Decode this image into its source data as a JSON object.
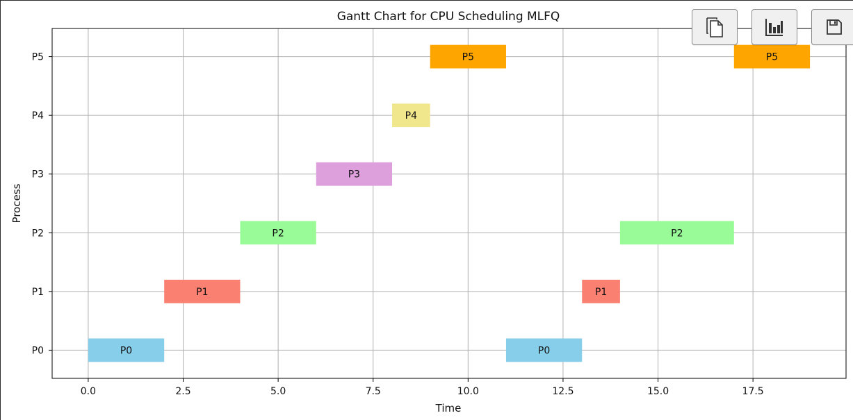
{
  "toolbar": {
    "buttons": [
      {
        "name": "copy-button",
        "icon": "copy-icon"
      },
      {
        "name": "chart-button",
        "icon": "bar-chart-icon"
      },
      {
        "name": "save-button",
        "icon": "save-icon"
      }
    ]
  },
  "chart_data": {
    "type": "gantt",
    "title": "Gantt Chart for CPU Scheduling MLFQ",
    "xlabel": "Time",
    "ylabel": "Process",
    "xlim": [
      -0.95,
      19.95
    ],
    "ylim": [
      -0.48,
      5.48
    ],
    "xticks": [
      0,
      2.5,
      5,
      7.5,
      10,
      12.5,
      15,
      17.5
    ],
    "xtick_labels": [
      "0.0",
      "2.5",
      "5.0",
      "7.5",
      "10.0",
      "12.5",
      "15.0",
      "17.5"
    ],
    "categories": [
      "P0",
      "P1",
      "P2",
      "P3",
      "P4",
      "P5"
    ],
    "grid": true,
    "bar_height": 0.4,
    "segments": [
      {
        "process": "P0",
        "start": 0,
        "end": 2,
        "color": "#87ceeb",
        "label": "P0"
      },
      {
        "process": "P1",
        "start": 2,
        "end": 4,
        "color": "#fa8072",
        "label": "P1"
      },
      {
        "process": "P2",
        "start": 4,
        "end": 6,
        "color": "#98fb98",
        "label": "P2"
      },
      {
        "process": "P3",
        "start": 6,
        "end": 8,
        "color": "#dda0dd",
        "label": "P3"
      },
      {
        "process": "P4",
        "start": 8,
        "end": 9,
        "color": "#f0e68c",
        "label": "P4"
      },
      {
        "process": "P5",
        "start": 9,
        "end": 11,
        "color": "#ffa500",
        "label": "P5"
      },
      {
        "process": "P0",
        "start": 11,
        "end": 13,
        "color": "#87ceeb",
        "label": "P0"
      },
      {
        "process": "P1",
        "start": 13,
        "end": 14,
        "color": "#fa8072",
        "label": "P1"
      },
      {
        "process": "P2",
        "start": 14,
        "end": 17,
        "color": "#98fb98",
        "label": "P2"
      },
      {
        "process": "P5",
        "start": 17,
        "end": 19,
        "color": "#ffa500",
        "label": "P5"
      }
    ]
  }
}
